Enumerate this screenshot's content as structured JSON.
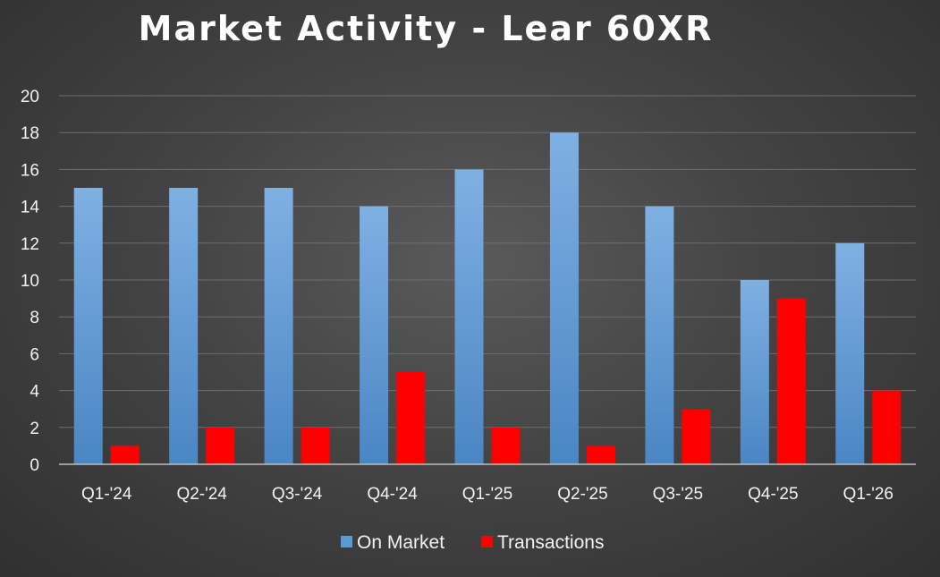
{
  "colors": {
    "on_market": "#5b9bd5",
    "transactions": "#ff0000"
  },
  "chart_data": {
    "type": "bar",
    "title": "Market Activity - Lear 60XR",
    "xlabel": "",
    "ylabel": "",
    "categories": [
      "Q1-'24",
      "Q2-'24",
      "Q3-'24",
      "Q4-'24",
      "Q1-'25",
      "Q2-'25",
      "Q3-'25",
      "Q4-'25",
      "Q1-'26"
    ],
    "series": [
      {
        "name": "On Market",
        "values": [
          15,
          15,
          15,
          14,
          16,
          18,
          14,
          10,
          12
        ]
      },
      {
        "name": "Transactions",
        "values": [
          1,
          2,
          2,
          5,
          2,
          1,
          3,
          9,
          4
        ]
      }
    ],
    "ylim": [
      0,
      20
    ],
    "yticks": [
      0,
      2,
      4,
      6,
      8,
      10,
      12,
      14,
      16,
      18,
      20
    ],
    "grid": true,
    "legend_position": "bottom"
  }
}
